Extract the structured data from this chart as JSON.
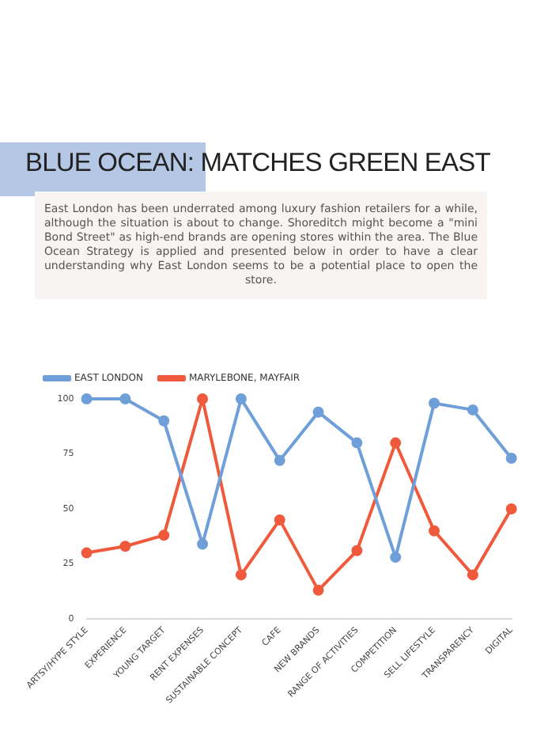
{
  "chart_data": {
    "type": "line",
    "title": "BLUE OCEAN: MATCHES GREEN EAST",
    "subtitle": "East London has been underrated among luxury fashion retailers for a while, although the situation is about to change. Shoreditch might become a \"mini Bond Street\" as high-end brands are opening stores within the area. The Blue Ocean Strategy is applied and presented below in order to have a clear understanding why East London seems to be a potential place to open the store.",
    "categories": [
      "ARTSY/HYPE STYLE",
      "EXPERIENCE",
      "YOUNG TARGET",
      "RENT EXPENSES",
      "SUSTAINABLE CONCEPT",
      "CAFE",
      "NEW BRANDS",
      "RANGE OF ACTIVITIES",
      "COMPETITION",
      "SELL LIFESTYLE",
      "TRANSPARENCY",
      "DIGITAL"
    ],
    "series": [
      {
        "name": "EAST LONDON",
        "color": "#6f9fd8",
        "values": [
          100,
          100,
          90,
          34,
          100,
          72,
          94,
          80,
          28,
          98,
          95,
          73
        ]
      },
      {
        "name": "MARYLEBONE, MAYFAIR",
        "color": "#f05a3c",
        "values": [
          30,
          33,
          38,
          100,
          20,
          45,
          13,
          31,
          80,
          40,
          20,
          50
        ]
      }
    ],
    "ylim": [
      0,
      100
    ],
    "yticks": [
      0,
      25,
      50,
      75,
      100
    ],
    "grid": false,
    "legend": "top left",
    "marker": "circle",
    "line_style": "solid"
  }
}
